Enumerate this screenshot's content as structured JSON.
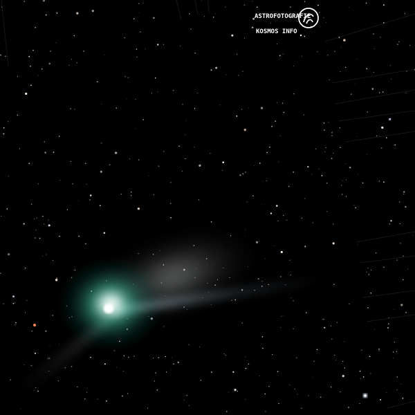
{
  "scene": {
    "subject": "comet",
    "background_color": "#000000",
    "coma_color": "#3fbfa0",
    "tail_color": "#d9dde0",
    "ion_tail_color": "#9fb3c8"
  },
  "watermark": {
    "line1": "ASTROFOTOGRAFIE",
    "line2": "KOSMOS INFO"
  }
}
